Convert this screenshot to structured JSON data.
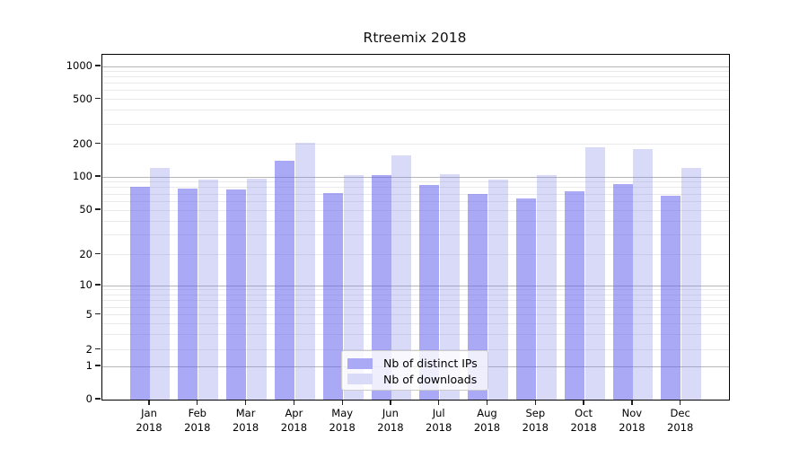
{
  "chart_data": {
    "type": "bar",
    "title": "Rtreemix 2018",
    "categories": [
      "Jan",
      "Feb",
      "Mar",
      "Apr",
      "May",
      "Jun",
      "Jul",
      "Aug",
      "Sep",
      "Oct",
      "Nov",
      "Dec"
    ],
    "year_label": "2018",
    "series": [
      {
        "name": "Nb of distinct IPs",
        "color": "#a9a9f5",
        "fill": "rgba(99,99,237,0.55)",
        "values": [
          81,
          79,
          77,
          140,
          72,
          104,
          85,
          70,
          64,
          74,
          86,
          67
        ]
      },
      {
        "name": "Nb of downloads",
        "color": "#d9d9f8",
        "fill": "rgba(128,128,232,0.30)",
        "values": [
          120,
          94,
          96,
          206,
          103,
          158,
          106,
          94,
          104,
          188,
          180,
          121
        ]
      }
    ],
    "yticks": [
      0,
      1,
      2,
      5,
      10,
      20,
      50,
      100,
      200,
      500,
      1000
    ],
    "yscale": "symlog",
    "ylim": [
      0,
      1280
    ],
    "xlabel": "",
    "ylabel": "",
    "grid": true,
    "legend_position": "lower center"
  }
}
